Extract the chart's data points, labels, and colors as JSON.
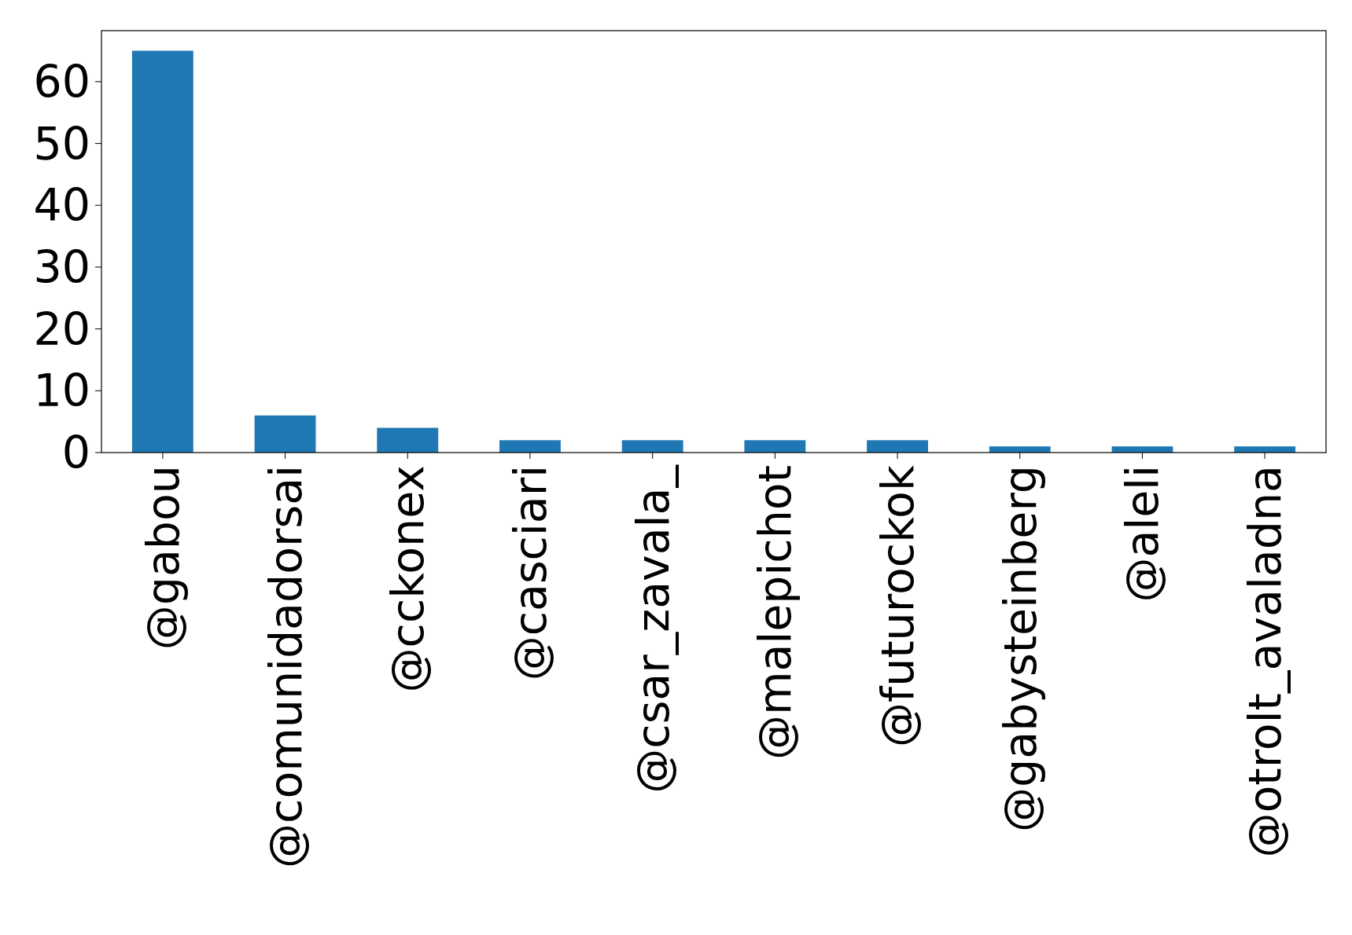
{
  "chart_data": {
    "type": "bar",
    "categories": [
      "@gabou",
      "@comunidadorsai",
      "@cckonex",
      "@casciari",
      "@csar_zavala_",
      "@malepichot",
      "@futurockok",
      "@gabysteinberg",
      "@aleli",
      "@otrolt_avaladna"
    ],
    "values": [
      65,
      6,
      4,
      2,
      2,
      2,
      2,
      1,
      1,
      1
    ],
    "color": "#1f77b4",
    "ylim": [
      0,
      68.25
    ],
    "yticks": [
      0,
      10,
      20,
      30,
      40,
      50,
      60
    ],
    "grid": false
  }
}
